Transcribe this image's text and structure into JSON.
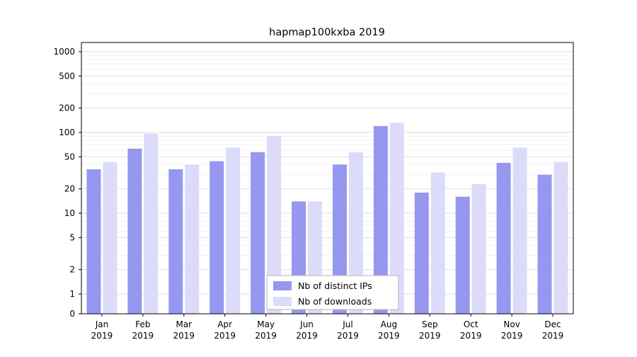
{
  "chart_data": {
    "type": "bar",
    "title": "hapmap100kxba 2019",
    "categories": [
      "Jan",
      "Feb",
      "Mar",
      "Apr",
      "May",
      "Jun",
      "Jul",
      "Aug",
      "Sep",
      "Oct",
      "Nov",
      "Dec"
    ],
    "year_label": "2019",
    "series": [
      {
        "name": "Nb of distinct IPs",
        "color": "#9697ee",
        "values": [
          35,
          63,
          35,
          44,
          57,
          14,
          40,
          120,
          18,
          16,
          42,
          30
        ]
      },
      {
        "name": "Nb of downloads",
        "color": "#dcdcfa",
        "values": [
          43,
          97,
          40,
          65,
          90,
          14,
          57,
          132,
          32,
          23,
          65,
          43
        ]
      }
    ],
    "yscale": "symlog",
    "yticks": [
      0,
      1,
      2,
      5,
      10,
      20,
      50,
      100,
      200,
      500,
      1000
    ],
    "ylim": [
      0,
      1000
    ],
    "grid": true,
    "legend_position": "lower center"
  },
  "colors": {
    "background": "#ffffff",
    "axis": "#000000",
    "grid_major": "#dcdcdc",
    "grid_minor": "#eeeeee",
    "legend_border": "#b3b3b3",
    "legend_background": "#ffffff"
  }
}
